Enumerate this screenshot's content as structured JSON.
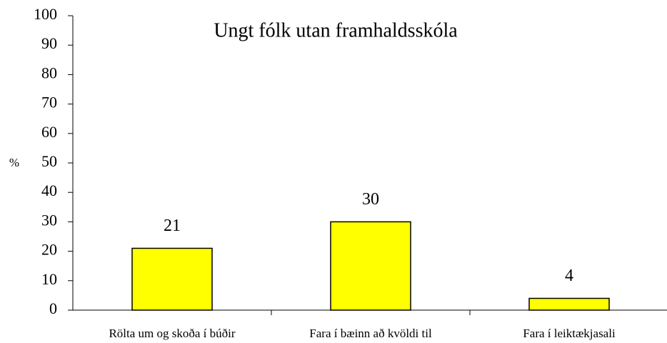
{
  "chart_data": {
    "type": "bar",
    "title": "Ungt fólk utan framhaldsskóla",
    "y_label": "%",
    "categories": [
      "Rölta um og skoða í búðir",
      "Fara í bæinn að kvöldi til",
      "Fara í leiktækjasali"
    ],
    "values": [
      21,
      30,
      4
    ],
    "color": "#ffff00",
    "ylim": [
      0,
      100
    ],
    "yticks": [
      0,
      10,
      20,
      30,
      40,
      50,
      60,
      70,
      80,
      90,
      100
    ],
    "grid": false
  }
}
